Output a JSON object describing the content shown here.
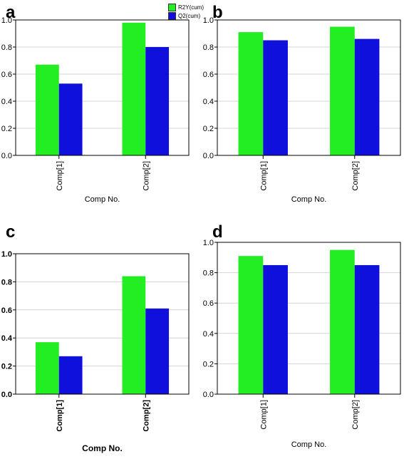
{
  "panels": [
    {
      "letter": "a"
    },
    {
      "letter": "b"
    },
    {
      "letter": "c"
    },
    {
      "letter": "d"
    }
  ],
  "legend": {
    "items": [
      {
        "label": "R2Y(cum)",
        "color": "#22ee22"
      },
      {
        "label": "Q2(cum)",
        "color": "#1010dd"
      }
    ]
  },
  "chart_data": [
    {
      "type": "bar",
      "panel": "a",
      "categories": [
        "Comp[1]",
        "Comp[2]"
      ],
      "series": [
        {
          "name": "R2Y(cum)",
          "values": [
            0.67,
            0.98
          ],
          "color": "#22ee22"
        },
        {
          "name": "Q2(cum)",
          "values": [
            0.53,
            0.8
          ],
          "color": "#1010dd"
        }
      ],
      "xlabel": "Comp No.",
      "ylabel": "",
      "ylim": [
        0,
        1.0
      ],
      "yticks": [
        "0.0",
        "0.2",
        "0.4",
        "0.6",
        "0.8",
        "1.0"
      ],
      "grid": true
    },
    {
      "type": "bar",
      "panel": "b",
      "categories": [
        "Comp[1]",
        "Comp[2]"
      ],
      "series": [
        {
          "name": "R2Y(cum)",
          "values": [
            0.91,
            0.95
          ],
          "color": "#22ee22"
        },
        {
          "name": "Q2(cum)",
          "values": [
            0.85,
            0.86
          ],
          "color": "#1010dd"
        }
      ],
      "xlabel": "Comp No.",
      "ylabel": "",
      "ylim": [
        0,
        1.0
      ],
      "yticks": [
        "0.0",
        "0.2",
        "0.4",
        "0.6",
        "0.8",
        "1.0"
      ],
      "grid": true
    },
    {
      "type": "bar",
      "panel": "c",
      "categories": [
        "Comp[1]",
        "Comp[2]"
      ],
      "series": [
        {
          "name": "R2Y(cum)",
          "values": [
            0.37,
            0.84
          ],
          "color": "#22ee22"
        },
        {
          "name": "Q2(cum)",
          "values": [
            0.27,
            0.61
          ],
          "color": "#1010dd"
        }
      ],
      "xlabel": "Comp No.",
      "ylabel": "",
      "ylim": [
        0,
        1.0
      ],
      "yticks": [
        "0.0",
        "0.2",
        "0.4",
        "0.6",
        "0.8",
        "1.0"
      ],
      "grid": true
    },
    {
      "type": "bar",
      "panel": "d",
      "categories": [
        "Comp[1]",
        "Comp[2]"
      ],
      "series": [
        {
          "name": "R2Y(cum)",
          "values": [
            0.91,
            0.95
          ],
          "color": "#22ee22"
        },
        {
          "name": "Q2(cum)",
          "values": [
            0.85,
            0.85
          ],
          "color": "#1010dd"
        }
      ],
      "xlabel": "Comp No.",
      "ylabel": "",
      "ylim": [
        0,
        1.0
      ],
      "yticks": [
        "0.0",
        "0.2",
        "0.4",
        "0.6",
        "0.8",
        "1.0"
      ],
      "grid": true
    }
  ]
}
